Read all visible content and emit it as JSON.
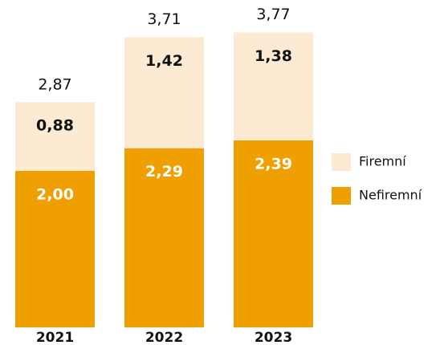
{
  "chart_data": {
    "type": "stacked_bar",
    "categories": [
      "2021",
      "2022",
      "2023"
    ],
    "series": [
      {
        "name": "Nefiremní",
        "color": "#ef9f00",
        "label_color": "#ffffff",
        "values": [
          2.0,
          2.29,
          2.39
        ],
        "value_labels": [
          "2,00",
          "2,29",
          "2,39"
        ]
      },
      {
        "name": "Firemní",
        "color": "#fcebd2",
        "label_color": "#111111",
        "values": [
          0.88,
          1.42,
          1.38
        ],
        "value_labels": [
          "0,88",
          "1,42",
          "1,38"
        ]
      }
    ],
    "totals": {
      "values": [
        2.87,
        3.71,
        3.77
      ],
      "value_labels": [
        "2,87",
        "3,71",
        "3,77"
      ]
    }
  }
}
